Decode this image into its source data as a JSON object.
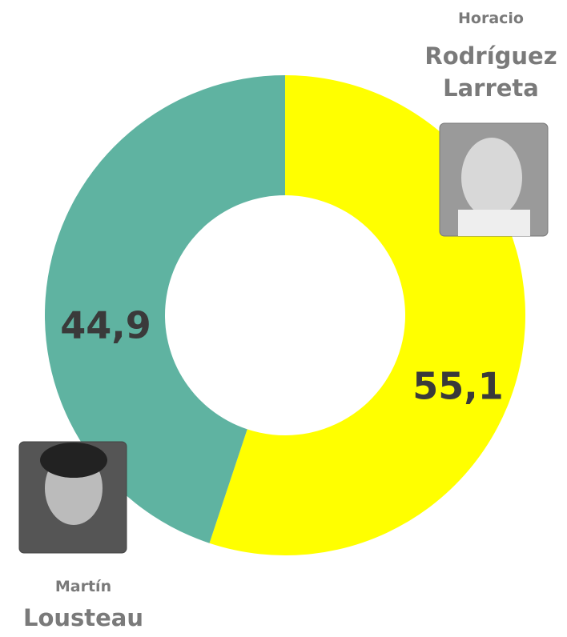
{
  "chart_data": {
    "type": "donut",
    "categories": [
      "Rodríguez Larreta",
      "Lousteau"
    ],
    "first_names": [
      "Horacio",
      "Martín"
    ],
    "values": [
      55.1,
      44.9
    ],
    "value_labels": [
      "55,1",
      "44,9"
    ],
    "colors": [
      "#ffff00",
      "#5fb3a1"
    ]
  }
}
